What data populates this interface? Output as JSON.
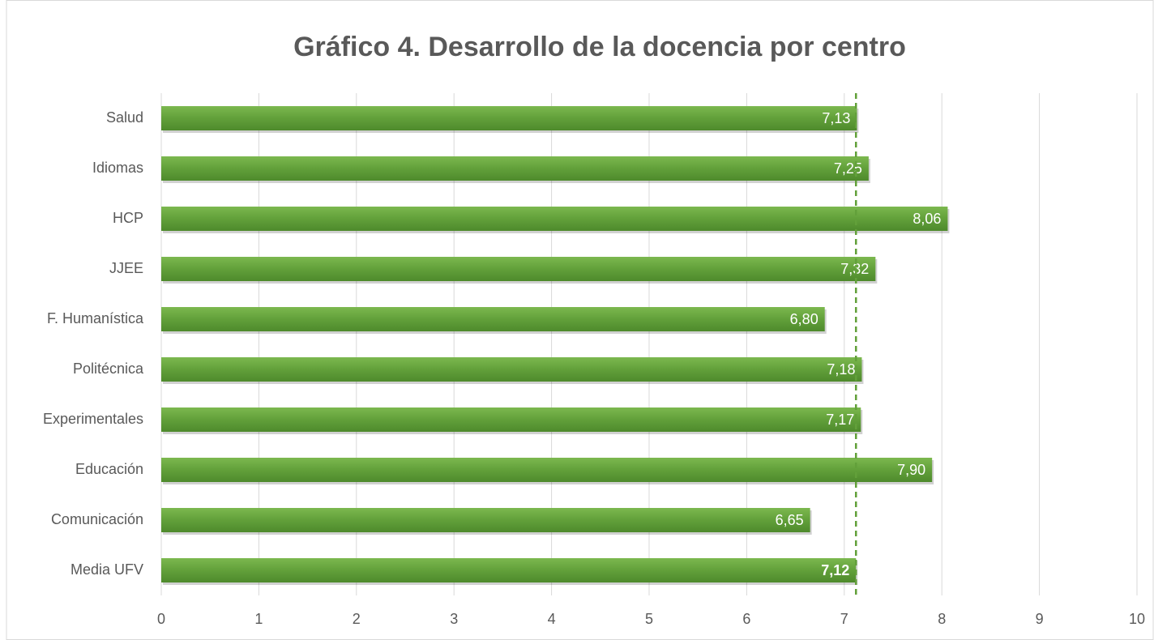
{
  "chart_data": {
    "type": "bar",
    "orientation": "horizontal",
    "title": "Gráfico 4. Desarrollo de la docencia por centro",
    "categories": [
      "Salud",
      "Idiomas",
      "HCP",
      "JJEE",
      "F. Humanística",
      "Politécnica",
      "Experimentales",
      "Educación",
      "Comunicación",
      "Media UFV"
    ],
    "values": [
      7.13,
      7.25,
      8.06,
      7.32,
      6.8,
      7.18,
      7.17,
      7.9,
      6.65,
      7.12
    ],
    "value_labels": [
      "7,13",
      "7,25",
      "8,06",
      "7,32",
      "6,80",
      "7,18",
      "7,17",
      "7,90",
      "6,65",
      "7,12"
    ],
    "color": "#62a03a",
    "xlim": [
      0,
      10
    ],
    "xticks": [
      0,
      1,
      2,
      3,
      4,
      5,
      6,
      7,
      8,
      9,
      10
    ],
    "grid": true
  }
}
